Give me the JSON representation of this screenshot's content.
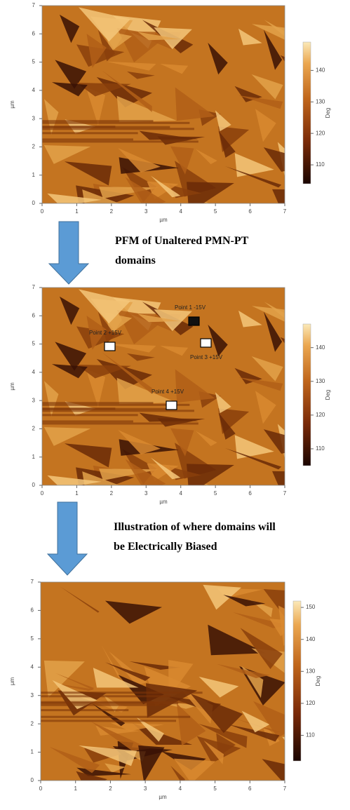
{
  "panels": [
    {
      "xlim": [
        0,
        7
      ],
      "ylim": [
        0,
        7
      ],
      "xticks": [
        0,
        1,
        2,
        3,
        4,
        5,
        6,
        7
      ],
      "yticks": [
        0,
        1,
        2,
        3,
        4,
        5,
        6,
        7
      ],
      "x_label": "µm",
      "y_label": "µm",
      "colorbar_label": "Deg",
      "clim": [
        104,
        149
      ],
      "colorbar_ticks": [
        110,
        120,
        130,
        140
      ]
    },
    {
      "xlim": [
        0,
        7
      ],
      "ylim": [
        0,
        7
      ],
      "xticks": [
        0,
        1,
        2,
        3,
        4,
        5,
        6,
        7
      ],
      "yticks": [
        0,
        1,
        2,
        3,
        4,
        5,
        6,
        7
      ],
      "x_label": "µm",
      "y_label": "µm",
      "colorbar_label": "Deg",
      "clim": [
        105,
        147
      ],
      "colorbar_ticks": [
        110,
        120,
        130,
        140
      ]
    },
    {
      "xlim": [
        0,
        7
      ],
      "ylim": [
        0,
        7
      ],
      "xticks": [
        0,
        1,
        2,
        3,
        4,
        5,
        6,
        7
      ],
      "yticks": [
        0,
        1,
        2,
        3,
        4,
        5,
        6,
        7
      ],
      "x_label": "µm",
      "y_label": "µm",
      "colorbar_label": "Deg",
      "clim": [
        102,
        152
      ],
      "colorbar_ticks": [
        110,
        120,
        130,
        140,
        150
      ]
    }
  ],
  "captions": [
    "PFM of Unaltered PMN-PT domains",
    "Illustration of where domains will be Electrically Biased"
  ],
  "annotations": [
    "Point 1 -15V",
    "Point 2 +15V",
    "Point 3 +15V",
    "Point 4 +15V"
  ]
}
